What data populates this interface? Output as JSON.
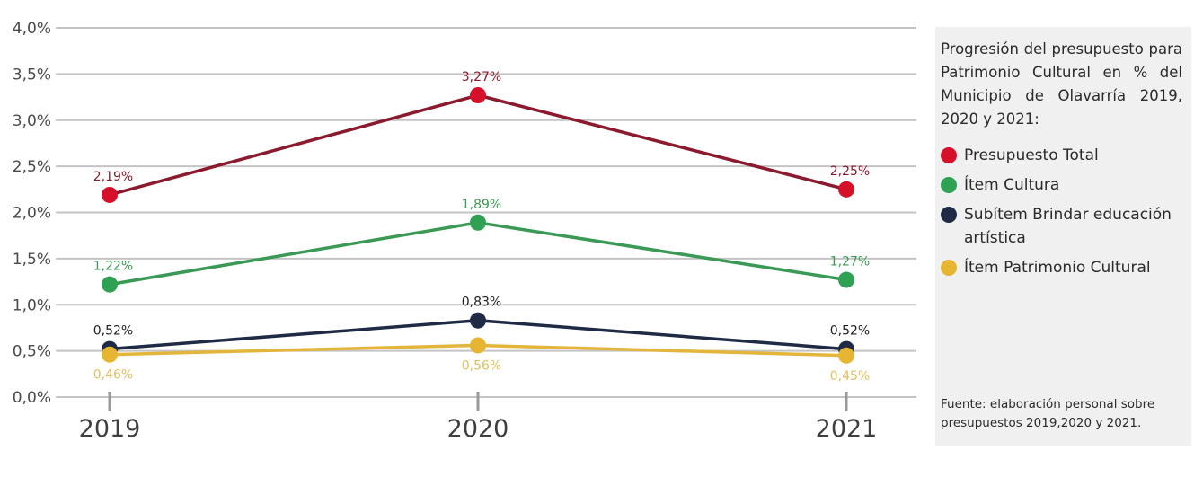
{
  "chart_data": {
    "type": "line",
    "title": "Progresión del presupuesto para Patrimonio Cultural en % del Municipio de Olavarría 2019, 2020 y 2021:",
    "xlabel": "",
    "ylabel": "",
    "categories": [
      "2019",
      "2020",
      "2021"
    ],
    "ylim": [
      0,
      4
    ],
    "yticks": [
      0,
      0.5,
      1,
      1.5,
      2,
      2.5,
      3,
      3.5,
      4
    ],
    "ytick_labels": [
      "0,0%",
      "0,5%",
      "1,0%",
      "1,5%",
      "2,0%",
      "2,5%",
      "3,0%",
      "3,5%",
      "4,0%"
    ],
    "grid": true,
    "legend_position": "right",
    "series": [
      {
        "name": "Presupuesto Total",
        "values": [
          2.19,
          3.27,
          2.25
        ],
        "labels": [
          "2,19%",
          "3,27%",
          "2,25%"
        ],
        "line_color": "#8b1a2e",
        "marker_color": "#d7102a",
        "label_color": "#8b1a2e",
        "label_position": "above"
      },
      {
        "name": "Ítem Cultura",
        "values": [
          1.22,
          1.89,
          1.27
        ],
        "labels": [
          "1,22%",
          "1,89%",
          "1,27%"
        ],
        "line_color": "#3a9a55",
        "marker_color": "#2ea152",
        "label_color": "#3a9a55",
        "label_position": "above"
      },
      {
        "name": "Subítem Brindar educación artística",
        "values": [
          0.52,
          0.83,
          0.52
        ],
        "labels": [
          "0,52%",
          "0,83%",
          "0,52%"
        ],
        "line_color": "#1f2a44",
        "marker_color": "#1f2a44",
        "label_color": "#1e1e1e",
        "label_position": "above"
      },
      {
        "name": "Ítem Patrimonio Cultural",
        "values": [
          0.46,
          0.56,
          0.45
        ],
        "labels": [
          "0,46%",
          "0,56%",
          "0,45%"
        ],
        "line_color": "#e3b53a",
        "marker_color": "#e6b532",
        "label_color": "#e0c060",
        "label_position": "below"
      }
    ]
  },
  "legend": {
    "title": "Progresión del presupuesto para Patrimonio Cultural en % del Municipio de Olavarría 2019, 2020 y 2021:",
    "items": [
      {
        "label": "Presupuesto Total",
        "color": "#d7102a"
      },
      {
        "label": "Ítem Cultura",
        "color": "#2ea152"
      },
      {
        "label": "Subítem Brindar educación artística",
        "color": "#1f2a44"
      },
      {
        "label": "Ítem Patrimonio Cultural",
        "color": "#e6b532"
      }
    ],
    "source": "Fuente: elaboración personal sobre presupuestos 2019,2020 y 2021."
  }
}
